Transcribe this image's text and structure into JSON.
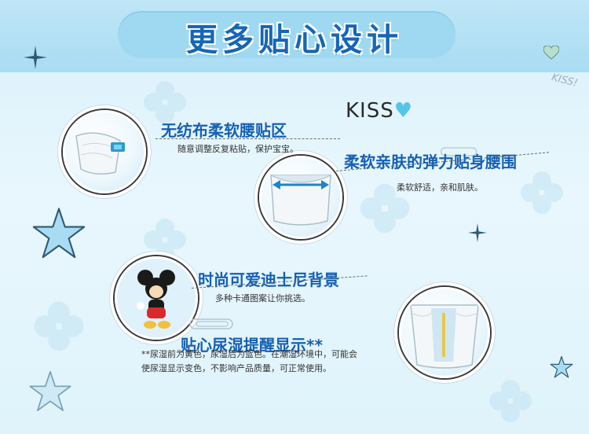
{
  "header": {
    "title": "更多贴心设计"
  },
  "decor": {
    "kiss_top": "KISS!",
    "kisso_text": "KISS",
    "kisso_heart": "♥"
  },
  "features": [
    {
      "heading": "无纺布柔软腰贴区",
      "desc": "随意调整反复粘贴，保护宝宝。"
    },
    {
      "heading": "柔软亲肤的弹力贴身腰围",
      "desc": "柔软舒适，亲和肌肤。"
    },
    {
      "heading": "时尚可爱迪士尼背景",
      "desc": "多种卡通图案让你挑选。"
    },
    {
      "heading": "贴心尿湿提醒显示**",
      "desc_line1": "**尿湿前为黄色，尿湿后为蓝色。在潮湿环境中，可能会",
      "desc_line2": "使尿湿显示变色，不影响产品质量，可正常使用。"
    }
  ],
  "colors": {
    "heading": "#1560b5",
    "banner": "#a9dcf3",
    "title": "#1566b7",
    "star_fill": "#a9dcf3"
  }
}
